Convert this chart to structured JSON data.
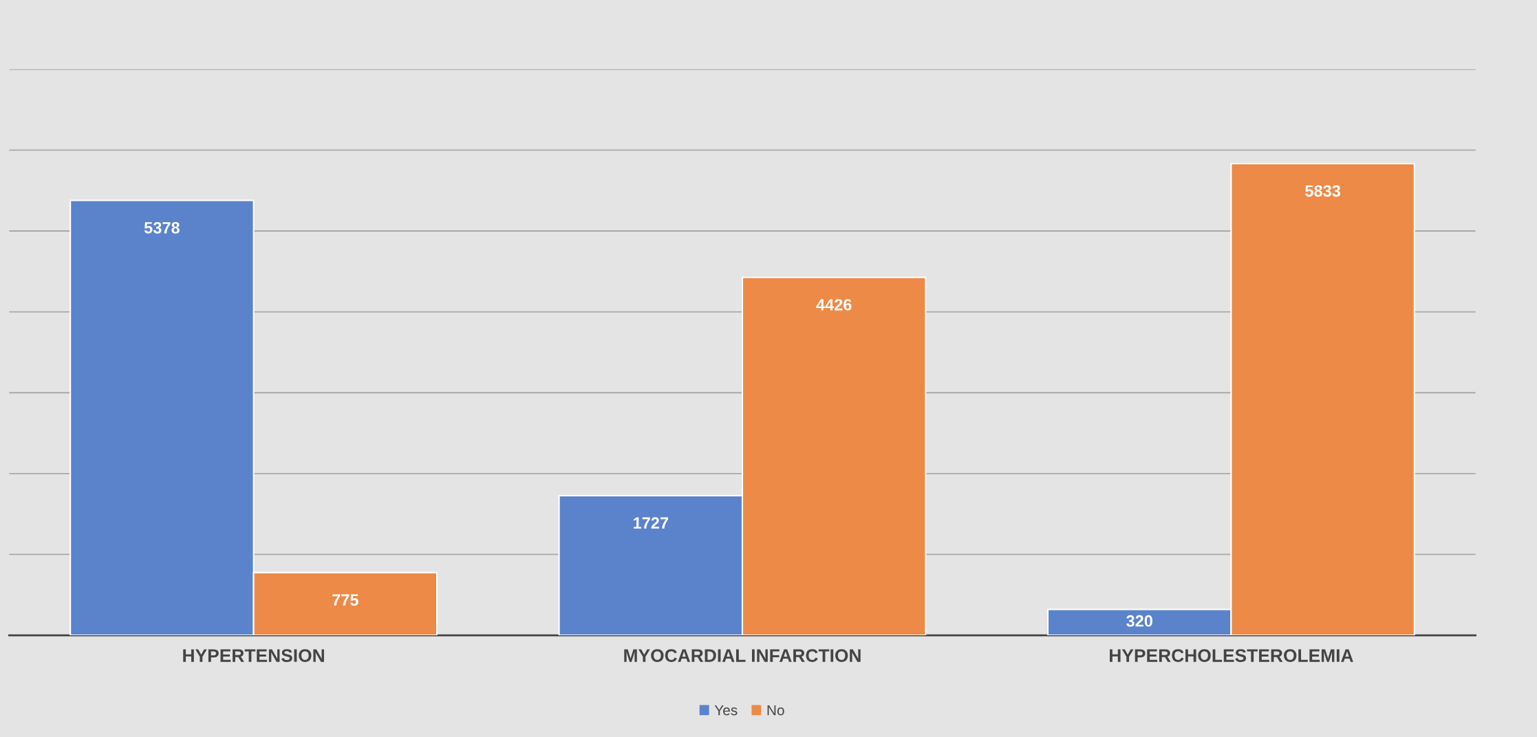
{
  "chart_data": {
    "type": "bar",
    "categories": [
      "HYPERTENSION",
      "MYOCARDIAL INFARCTION",
      "HYPERCHOLESTEROLEMIA"
    ],
    "series": [
      {
        "name": "Yes",
        "color": "#5b83cc",
        "values": [
          5378,
          1727,
          320
        ]
      },
      {
        "name": "No",
        "color": "#ed8a47",
        "values": [
          775,
          4426,
          5833
        ]
      }
    ],
    "ylim": [
      0,
      7000
    ],
    "yticks": [
      {
        "value": 0,
        "label": null
      },
      {
        "value": 1000,
        "label": null
      },
      {
        "value": 2000,
        "label": null
      },
      {
        "value": 3000,
        "label": null
      },
      {
        "value": 4000,
        "label": null
      },
      {
        "value": 5000,
        "label": null
      },
      {
        "value": 6000,
        "label": null
      },
      {
        "value": 7000,
        "label": null
      }
    ],
    "tick_labels": "x",
    "grid": "y",
    "legend": "bottom",
    "data_labels": true
  }
}
